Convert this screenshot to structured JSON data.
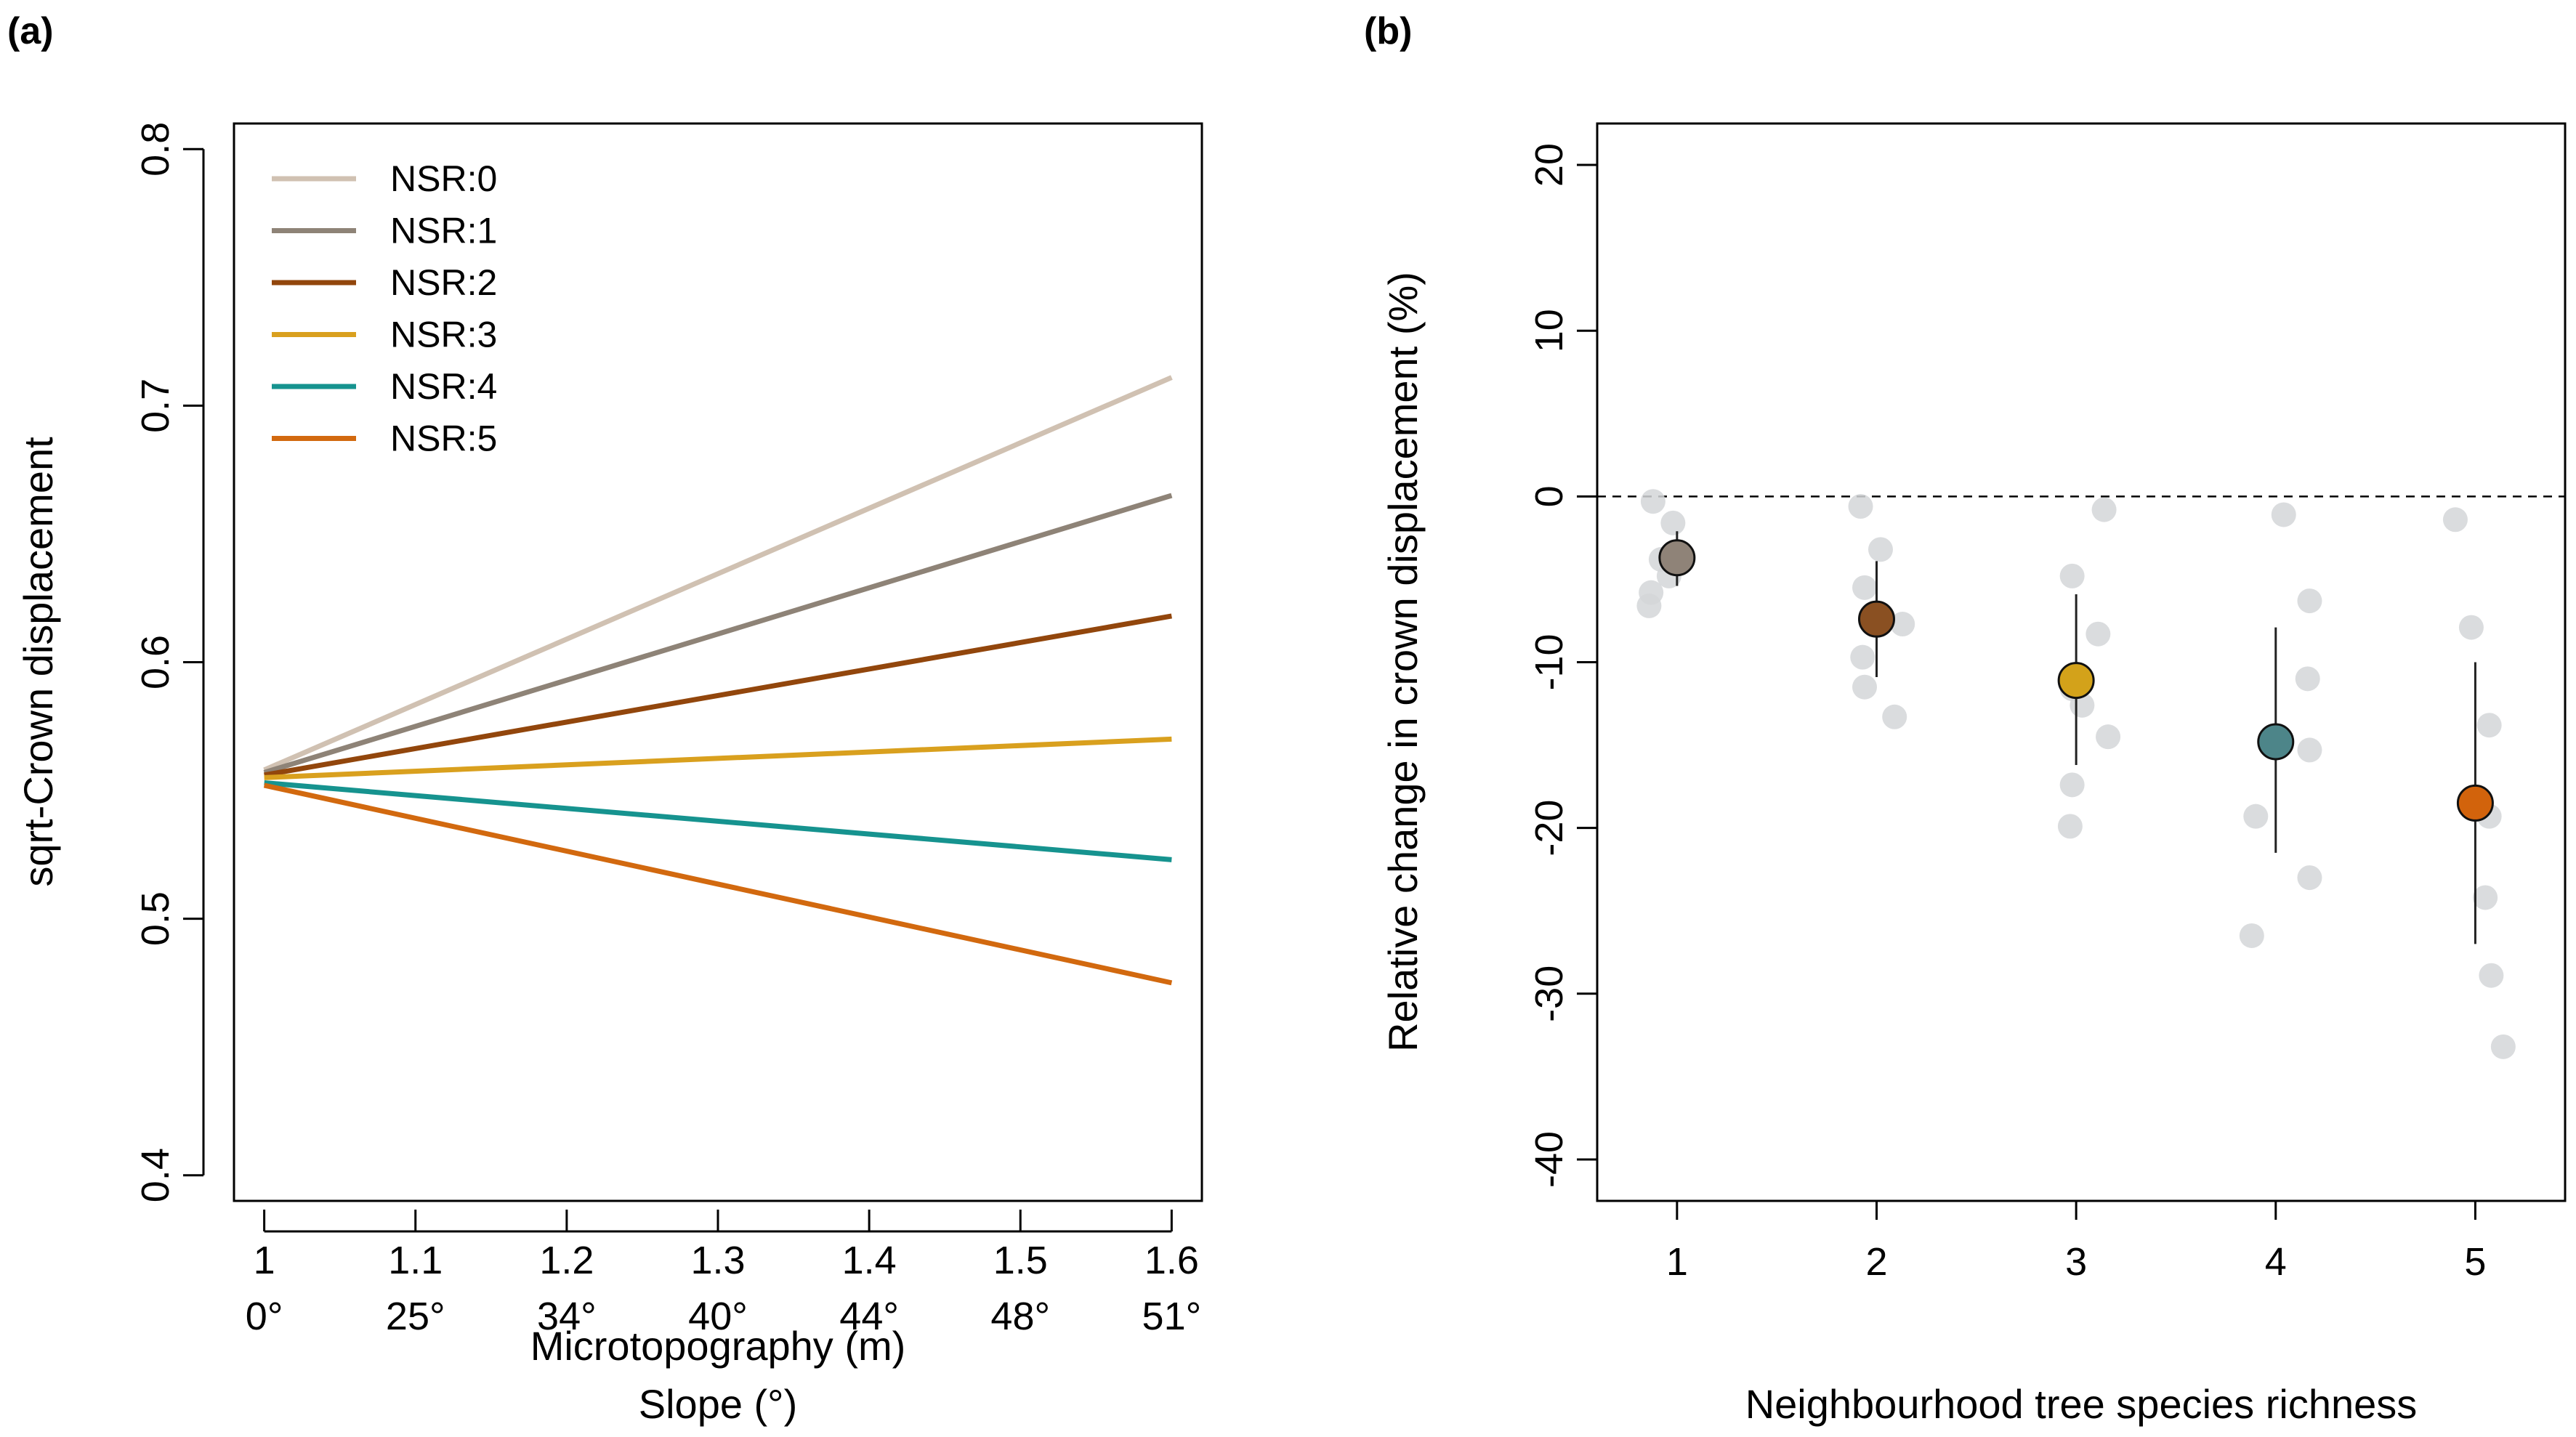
{
  "chart_data": [
    {
      "type": "line",
      "panel_label": "(a)",
      "title": "",
      "xlabel": "Microtopography (m)",
      "xlabel2": "Slope (°)",
      "ylabel": "sqrt-Crown displacement",
      "xlim": [
        0.98,
        1.62
      ],
      "ylim": [
        0.39,
        0.81
      ],
      "x_ticks": [
        1.0,
        1.1,
        1.2,
        1.3,
        1.4,
        1.5,
        1.6
      ],
      "x_tick_labels": [
        "1",
        "1.1",
        "1.2",
        "1.3",
        "1.4",
        "1.5",
        "1.6"
      ],
      "x_tick_labels2": [
        "0°",
        "25°",
        "34°",
        "40°",
        "44°",
        "48°",
        "51°"
      ],
      "y_ticks": [
        0.4,
        0.5,
        0.6,
        0.7,
        0.8
      ],
      "y_tick_labels": [
        "0.4",
        "0.5",
        "0.6",
        "0.7",
        "0.8"
      ],
      "legend_position": "top-left",
      "series": [
        {
          "name": "NSR:0",
          "color": "#D0C1B2",
          "x": [
            1.0,
            1.6
          ],
          "y": [
            0.558,
            0.711
          ]
        },
        {
          "name": "NSR:1",
          "color": "#8E8377",
          "x": [
            1.0,
            1.6
          ],
          "y": [
            0.557,
            0.665
          ]
        },
        {
          "name": "NSR:2",
          "color": "#92460C",
          "x": [
            1.0,
            1.6
          ],
          "y": [
            0.556,
            0.618
          ]
        },
        {
          "name": "NSR:3",
          "color": "#D9A01E",
          "x": [
            1.0,
            1.6
          ],
          "y": [
            0.555,
            0.57
          ]
        },
        {
          "name": "NSR:4",
          "color": "#16938F",
          "x": [
            1.0,
            1.6
          ],
          "y": [
            0.553,
            0.523
          ]
        },
        {
          "name": "NSR:5",
          "color": "#D2690F",
          "x": [
            1.0,
            1.6
          ],
          "y": [
            0.552,
            0.475
          ]
        }
      ]
    },
    {
      "type": "scatter",
      "panel_label": "(b)",
      "title": "",
      "xlabel": "Neighbourhood tree species richness",
      "ylabel": "Relative change in crown displacement (%)",
      "xlim": [
        0.6,
        5.45
      ],
      "ylim": [
        -42.5,
        22.5
      ],
      "x_ticks": [
        1,
        2,
        3,
        4,
        5
      ],
      "x_tick_labels": [
        "1",
        "2",
        "3",
        "4",
        "5"
      ],
      "y_ticks": [
        -40,
        -30,
        -20,
        -10,
        0,
        10,
        20
      ],
      "y_tick_labels": [
        "-40",
        "-30",
        "-20",
        "-10",
        "0",
        "10",
        "20"
      ],
      "reference_line_y": 0,
      "raw_points_color": "#D3D6D8",
      "raw_points": [
        {
          "x": 0.88,
          "y": -0.3
        },
        {
          "x": 0.98,
          "y": -1.6
        },
        {
          "x": 0.92,
          "y": -3.8
        },
        {
          "x": 0.96,
          "y": -4.8
        },
        {
          "x": 0.87,
          "y": -5.8
        },
        {
          "x": 0.86,
          "y": -6.6
        },
        {
          "x": 1.92,
          "y": -0.6
        },
        {
          "x": 2.02,
          "y": -3.2
        },
        {
          "x": 1.94,
          "y": -5.5
        },
        {
          "x": 2.13,
          "y": -7.7
        },
        {
          "x": 1.93,
          "y": -9.7
        },
        {
          "x": 1.94,
          "y": -11.5
        },
        {
          "x": 2.09,
          "y": -13.3
        },
        {
          "x": 3.14,
          "y": -0.8
        },
        {
          "x": 2.98,
          "y": -4.8
        },
        {
          "x": 3.11,
          "y": -8.3
        },
        {
          "x": 2.98,
          "y": -11.6
        },
        {
          "x": 3.03,
          "y": -12.6
        },
        {
          "x": 3.16,
          "y": -14.5
        },
        {
          "x": 2.98,
          "y": -17.4
        },
        {
          "x": 2.97,
          "y": -19.9
        },
        {
          "x": 4.04,
          "y": -1.1
        },
        {
          "x": 4.17,
          "y": -6.3
        },
        {
          "x": 4.16,
          "y": -11.0
        },
        {
          "x": 4.17,
          "y": -15.3
        },
        {
          "x": 3.9,
          "y": -19.3
        },
        {
          "x": 4.17,
          "y": -23.0
        },
        {
          "x": 3.88,
          "y": -26.5
        },
        {
          "x": 4.9,
          "y": -1.4
        },
        {
          "x": 4.98,
          "y": -7.9
        },
        {
          "x": 5.07,
          "y": -13.8
        },
        {
          "x": 5.07,
          "y": -19.3
        },
        {
          "x": 5.05,
          "y": -24.2
        },
        {
          "x": 5.08,
          "y": -28.9
        },
        {
          "x": 5.14,
          "y": -33.2
        }
      ],
      "means": [
        {
          "x": 1,
          "y": -3.7,
          "ci": [
            -5.4,
            -2.1
          ],
          "color": "#8F8378"
        },
        {
          "x": 2,
          "y": -7.4,
          "ci": [
            -10.9,
            -3.9
          ],
          "color": "#8A5022"
        },
        {
          "x": 3,
          "y": -11.1,
          "ci": [
            -16.2,
            -5.9
          ],
          "color": "#D3A21A"
        },
        {
          "x": 4,
          "y": -14.8,
          "ci": [
            -21.5,
            -7.9
          ],
          "color": "#4D8589"
        },
        {
          "x": 5,
          "y": -18.5,
          "ci": [
            -27.0,
            -10.0
          ],
          "color": "#D2630C"
        }
      ]
    }
  ]
}
